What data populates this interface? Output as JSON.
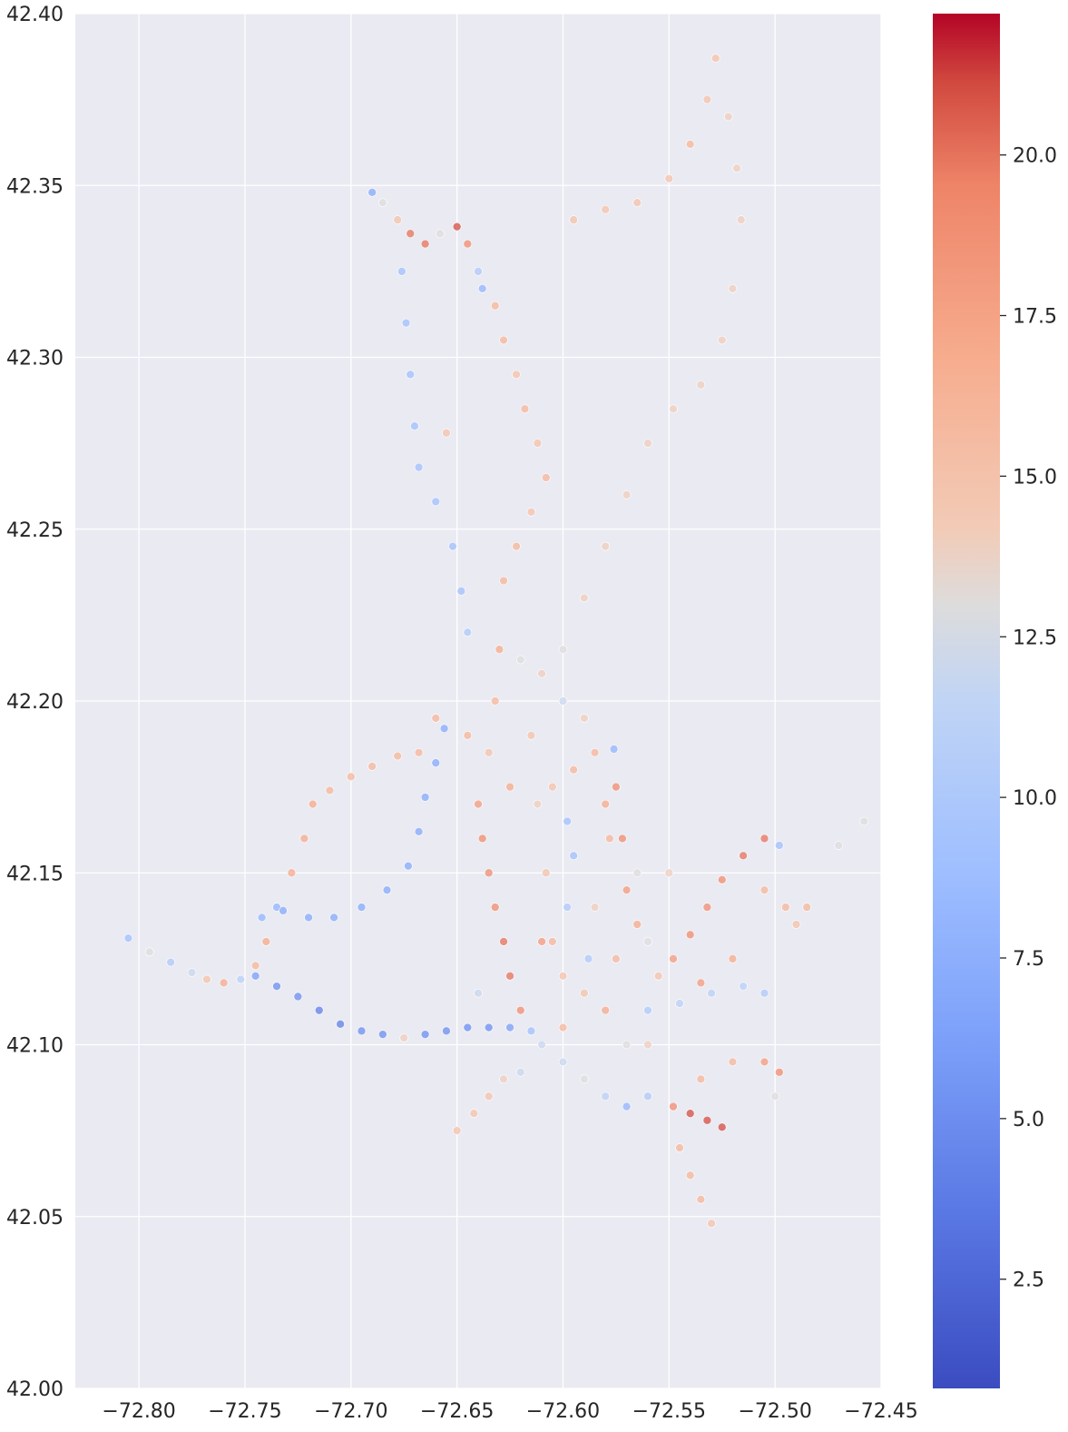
{
  "chart_data": {
    "type": "scatter",
    "title": "",
    "xlabel": "",
    "ylabel": "",
    "xlim": [
      -72.83,
      -72.45
    ],
    "ylim": [
      42.0,
      42.4
    ],
    "x_ticks": [
      {
        "value": -72.8,
        "label": "−72.80"
      },
      {
        "value": -72.75,
        "label": "−72.75"
      },
      {
        "value": -72.7,
        "label": "−72.70"
      },
      {
        "value": -72.65,
        "label": "−72.65"
      },
      {
        "value": -72.6,
        "label": "−72.60"
      },
      {
        "value": -72.55,
        "label": "−72.55"
      },
      {
        "value": -72.5,
        "label": "−72.50"
      },
      {
        "value": -72.45,
        "label": "−72.45"
      }
    ],
    "y_ticks": [
      {
        "value": 42.0,
        "label": "42.00"
      },
      {
        "value": 42.05,
        "label": "42.05"
      },
      {
        "value": 42.1,
        "label": "42.10"
      },
      {
        "value": 42.15,
        "label": "42.15"
      },
      {
        "value": 42.2,
        "label": "42.20"
      },
      {
        "value": 42.25,
        "label": "42.25"
      },
      {
        "value": 42.3,
        "label": "42.30"
      },
      {
        "value": 42.35,
        "label": "42.35"
      },
      {
        "value": 42.4,
        "label": "42.40"
      }
    ],
    "grid": true,
    "colormap": "coolwarm",
    "colorbar": {
      "range": [
        0.8,
        22.2
      ],
      "ticks": [
        {
          "value": 2.5,
          "label": "2.5"
        },
        {
          "value": 5.0,
          "label": "5.0"
        },
        {
          "value": 7.5,
          "label": "7.5"
        },
        {
          "value": 10.0,
          "label": "10.0"
        },
        {
          "value": 12.5,
          "label": "12.5"
        },
        {
          "value": 15.0,
          "label": "15.0"
        },
        {
          "value": 17.5,
          "label": "17.5"
        },
        {
          "value": 20.0,
          "label": "20.0"
        }
      ]
    },
    "colors": {
      "background": "#eaeaf2",
      "grid": "#ffffff",
      "low": "#3b4cc0",
      "mid": "#dddddd",
      "high": "#b40426"
    },
    "points": [
      {
        "x": -72.805,
        "y": 42.131,
        "c": 9
      },
      {
        "x": -72.795,
        "y": 42.127,
        "c": 13
      },
      {
        "x": -72.785,
        "y": 42.124,
        "c": 10
      },
      {
        "x": -72.775,
        "y": 42.121,
        "c": 12
      },
      {
        "x": -72.768,
        "y": 42.119,
        "c": 15
      },
      {
        "x": -72.76,
        "y": 42.118,
        "c": 17
      },
      {
        "x": -72.752,
        "y": 42.119,
        "c": 11
      },
      {
        "x": -72.745,
        "y": 42.123,
        "c": 16
      },
      {
        "x": -72.74,
        "y": 42.13,
        "c": 17
      },
      {
        "x": -72.735,
        "y": 42.14,
        "c": 8
      },
      {
        "x": -72.728,
        "y": 42.15,
        "c": 17
      },
      {
        "x": -72.722,
        "y": 42.16,
        "c": 17
      },
      {
        "x": -72.718,
        "y": 42.17,
        "c": 17
      },
      {
        "x": -72.71,
        "y": 42.174,
        "c": 16
      },
      {
        "x": -72.7,
        "y": 42.178,
        "c": 16
      },
      {
        "x": -72.69,
        "y": 42.181,
        "c": 16
      },
      {
        "x": -72.678,
        "y": 42.184,
        "c": 16
      },
      {
        "x": -72.668,
        "y": 42.185,
        "c": 16
      },
      {
        "x": -72.742,
        "y": 42.137,
        "c": 8
      },
      {
        "x": -72.732,
        "y": 42.139,
        "c": 7
      },
      {
        "x": -72.72,
        "y": 42.137,
        "c": 7
      },
      {
        "x": -72.708,
        "y": 42.137,
        "c": 7
      },
      {
        "x": -72.695,
        "y": 42.14,
        "c": 7
      },
      {
        "x": -72.683,
        "y": 42.145,
        "c": 7
      },
      {
        "x": -72.673,
        "y": 42.152,
        "c": 7
      },
      {
        "x": -72.668,
        "y": 42.162,
        "c": 7
      },
      {
        "x": -72.665,
        "y": 42.172,
        "c": 7
      },
      {
        "x": -72.66,
        "y": 42.182,
        "c": 7
      },
      {
        "x": -72.656,
        "y": 42.192,
        "c": 7
      },
      {
        "x": -72.745,
        "y": 42.12,
        "c": 6
      },
      {
        "x": -72.735,
        "y": 42.117,
        "c": 5
      },
      {
        "x": -72.725,
        "y": 42.114,
        "c": 5
      },
      {
        "x": -72.715,
        "y": 42.11,
        "c": 4
      },
      {
        "x": -72.705,
        "y": 42.106,
        "c": 4
      },
      {
        "x": -72.695,
        "y": 42.104,
        "c": 5
      },
      {
        "x": -72.685,
        "y": 42.103,
        "c": 5
      },
      {
        "x": -72.675,
        "y": 42.102,
        "c": 14
      },
      {
        "x": -72.665,
        "y": 42.103,
        "c": 5
      },
      {
        "x": -72.655,
        "y": 42.104,
        "c": 5
      },
      {
        "x": -72.645,
        "y": 42.105,
        "c": 5
      },
      {
        "x": -72.635,
        "y": 42.105,
        "c": 5
      },
      {
        "x": -72.625,
        "y": 42.105,
        "c": 6
      },
      {
        "x": -72.615,
        "y": 42.104,
        "c": 9
      },
      {
        "x": -72.69,
        "y": 42.348,
        "c": 7
      },
      {
        "x": -72.685,
        "y": 42.345,
        "c": 13
      },
      {
        "x": -72.678,
        "y": 42.34,
        "c": 15
      },
      {
        "x": -72.672,
        "y": 42.336,
        "c": 20
      },
      {
        "x": -72.665,
        "y": 42.333,
        "c": 20
      },
      {
        "x": -72.658,
        "y": 42.336,
        "c": 13
      },
      {
        "x": -72.65,
        "y": 42.338,
        "c": 21
      },
      {
        "x": -72.645,
        "y": 42.333,
        "c": 19
      },
      {
        "x": -72.64,
        "y": 42.325,
        "c": 10
      },
      {
        "x": -72.638,
        "y": 42.32,
        "c": 8
      },
      {
        "x": -72.632,
        "y": 42.315,
        "c": 16
      },
      {
        "x": -72.628,
        "y": 42.305,
        "c": 16
      },
      {
        "x": -72.622,
        "y": 42.295,
        "c": 15
      },
      {
        "x": -72.618,
        "y": 42.285,
        "c": 16
      },
      {
        "x": -72.612,
        "y": 42.275,
        "c": 15
      },
      {
        "x": -72.608,
        "y": 42.265,
        "c": 16
      },
      {
        "x": -72.615,
        "y": 42.255,
        "c": 15
      },
      {
        "x": -72.622,
        "y": 42.245,
        "c": 16
      },
      {
        "x": -72.628,
        "y": 42.235,
        "c": 16
      },
      {
        "x": -72.676,
        "y": 42.325,
        "c": 9
      },
      {
        "x": -72.674,
        "y": 42.31,
        "c": 9
      },
      {
        "x": -72.672,
        "y": 42.295,
        "c": 9
      },
      {
        "x": -72.67,
        "y": 42.28,
        "c": 9
      },
      {
        "x": -72.668,
        "y": 42.268,
        "c": 9
      },
      {
        "x": -72.66,
        "y": 42.258,
        "c": 9
      },
      {
        "x": -72.652,
        "y": 42.245,
        "c": 9
      },
      {
        "x": -72.648,
        "y": 42.232,
        "c": 9
      },
      {
        "x": -72.645,
        "y": 42.22,
        "c": 10
      },
      {
        "x": -72.655,
        "y": 42.278,
        "c": 15
      },
      {
        "x": -72.595,
        "y": 42.34,
        "c": 15
      },
      {
        "x": -72.58,
        "y": 42.343,
        "c": 15
      },
      {
        "x": -72.565,
        "y": 42.345,
        "c": 15
      },
      {
        "x": -72.55,
        "y": 42.352,
        "c": 15
      },
      {
        "x": -72.54,
        "y": 42.362,
        "c": 16
      },
      {
        "x": -72.532,
        "y": 42.375,
        "c": 15
      },
      {
        "x": -72.528,
        "y": 42.387,
        "c": 15
      },
      {
        "x": -72.522,
        "y": 42.37,
        "c": 14
      },
      {
        "x": -72.518,
        "y": 42.355,
        "c": 14
      },
      {
        "x": -72.516,
        "y": 42.34,
        "c": 14
      },
      {
        "x": -72.52,
        "y": 42.32,
        "c": 14
      },
      {
        "x": -72.525,
        "y": 42.305,
        "c": 14
      },
      {
        "x": -72.535,
        "y": 42.292,
        "c": 14
      },
      {
        "x": -72.548,
        "y": 42.285,
        "c": 14
      },
      {
        "x": -72.56,
        "y": 42.275,
        "c": 14
      },
      {
        "x": -72.57,
        "y": 42.26,
        "c": 14
      },
      {
        "x": -72.58,
        "y": 42.245,
        "c": 14
      },
      {
        "x": -72.59,
        "y": 42.23,
        "c": 14
      },
      {
        "x": -72.6,
        "y": 42.215,
        "c": 13
      },
      {
        "x": -72.63,
        "y": 42.215,
        "c": 17
      },
      {
        "x": -72.632,
        "y": 42.2,
        "c": 16
      },
      {
        "x": -72.635,
        "y": 42.185,
        "c": 15
      },
      {
        "x": -72.64,
        "y": 42.17,
        "c": 18
      },
      {
        "x": -72.638,
        "y": 42.16,
        "c": 19
      },
      {
        "x": -72.635,
        "y": 42.15,
        "c": 19
      },
      {
        "x": -72.632,
        "y": 42.14,
        "c": 19
      },
      {
        "x": -72.628,
        "y": 42.13,
        "c": 20
      },
      {
        "x": -72.625,
        "y": 42.12,
        "c": 20
      },
      {
        "x": -72.62,
        "y": 42.11,
        "c": 19
      },
      {
        "x": -72.62,
        "y": 42.212,
        "c": 13
      },
      {
        "x": -72.61,
        "y": 42.208,
        "c": 14
      },
      {
        "x": -72.6,
        "y": 42.2,
        "c": 12
      },
      {
        "x": -72.615,
        "y": 42.19,
        "c": 15
      },
      {
        "x": -72.612,
        "y": 42.17,
        "c": 14
      },
      {
        "x": -72.608,
        "y": 42.15,
        "c": 15
      },
      {
        "x": -72.605,
        "y": 42.13,
        "c": 16
      },
      {
        "x": -72.6,
        "y": 42.12,
        "c": 15
      },
      {
        "x": -72.598,
        "y": 42.165,
        "c": 9
      },
      {
        "x": -72.595,
        "y": 42.155,
        "c": 9
      },
      {
        "x": -72.598,
        "y": 42.14,
        "c": 10
      },
      {
        "x": -72.585,
        "y": 42.185,
        "c": 16
      },
      {
        "x": -72.58,
        "y": 42.17,
        "c": 17
      },
      {
        "x": -72.578,
        "y": 42.16,
        "c": 16
      },
      {
        "x": -72.575,
        "y": 42.175,
        "c": 19
      },
      {
        "x": -72.572,
        "y": 42.16,
        "c": 19
      },
      {
        "x": -72.57,
        "y": 42.145,
        "c": 18
      },
      {
        "x": -72.565,
        "y": 42.135,
        "c": 17
      },
      {
        "x": -72.576,
        "y": 42.186,
        "c": 8
      },
      {
        "x": -72.56,
        "y": 42.13,
        "c": 13
      },
      {
        "x": -72.555,
        "y": 42.12,
        "c": 15
      },
      {
        "x": -72.548,
        "y": 42.125,
        "c": 18
      },
      {
        "x": -72.54,
        "y": 42.132,
        "c": 19
      },
      {
        "x": -72.532,
        "y": 42.14,
        "c": 19
      },
      {
        "x": -72.525,
        "y": 42.148,
        "c": 19
      },
      {
        "x": -72.515,
        "y": 42.155,
        "c": 20
      },
      {
        "x": -72.505,
        "y": 42.16,
        "c": 20
      },
      {
        "x": -72.498,
        "y": 42.158,
        "c": 9
      },
      {
        "x": -72.505,
        "y": 42.145,
        "c": 16
      },
      {
        "x": -72.495,
        "y": 42.14,
        "c": 16
      },
      {
        "x": -72.485,
        "y": 42.14,
        "c": 16
      },
      {
        "x": -72.49,
        "y": 42.135,
        "c": 15
      },
      {
        "x": -72.47,
        "y": 42.158,
        "c": 13
      },
      {
        "x": -72.458,
        "y": 42.165,
        "c": 13
      },
      {
        "x": -72.56,
        "y": 42.11,
        "c": 10
      },
      {
        "x": -72.545,
        "y": 42.112,
        "c": 11
      },
      {
        "x": -72.53,
        "y": 42.115,
        "c": 11
      },
      {
        "x": -72.515,
        "y": 42.117,
        "c": 11
      },
      {
        "x": -72.505,
        "y": 42.115,
        "c": 10
      },
      {
        "x": -72.52,
        "y": 42.125,
        "c": 17
      },
      {
        "x": -72.535,
        "y": 42.118,
        "c": 18
      },
      {
        "x": -72.61,
        "y": 42.1,
        "c": 12
      },
      {
        "x": -72.6,
        "y": 42.095,
        "c": 12
      },
      {
        "x": -72.59,
        "y": 42.09,
        "c": 13
      },
      {
        "x": -72.58,
        "y": 42.085,
        "c": 11
      },
      {
        "x": -72.57,
        "y": 42.082,
        "c": 8
      },
      {
        "x": -72.56,
        "y": 42.085,
        "c": 10
      },
      {
        "x": -72.548,
        "y": 42.082,
        "c": 19
      },
      {
        "x": -72.54,
        "y": 42.08,
        "c": 21
      },
      {
        "x": -72.532,
        "y": 42.078,
        "c": 21
      },
      {
        "x": -72.525,
        "y": 42.076,
        "c": 21
      },
      {
        "x": -72.535,
        "y": 42.09,
        "c": 16
      },
      {
        "x": -72.52,
        "y": 42.095,
        "c": 16
      },
      {
        "x": -72.505,
        "y": 42.095,
        "c": 18
      },
      {
        "x": -72.498,
        "y": 42.092,
        "c": 19
      },
      {
        "x": -72.5,
        "y": 42.085,
        "c": 13
      },
      {
        "x": -72.65,
        "y": 42.075,
        "c": 15
      },
      {
        "x": -72.642,
        "y": 42.08,
        "c": 15
      },
      {
        "x": -72.635,
        "y": 42.085,
        "c": 15
      },
      {
        "x": -72.628,
        "y": 42.09,
        "c": 14
      },
      {
        "x": -72.62,
        "y": 42.092,
        "c": 12
      },
      {
        "x": -72.545,
        "y": 42.07,
        "c": 16
      },
      {
        "x": -72.54,
        "y": 42.062,
        "c": 16
      },
      {
        "x": -72.535,
        "y": 42.055,
        "c": 16
      },
      {
        "x": -72.53,
        "y": 42.048,
        "c": 15
      },
      {
        "x": -72.66,
        "y": 42.195,
        "c": 16
      },
      {
        "x": -72.645,
        "y": 42.19,
        "c": 16
      },
      {
        "x": -72.59,
        "y": 42.195,
        "c": 14
      },
      {
        "x": -72.585,
        "y": 42.14,
        "c": 14
      },
      {
        "x": -72.59,
        "y": 42.115,
        "c": 15
      },
      {
        "x": -72.58,
        "y": 42.11,
        "c": 17
      },
      {
        "x": -72.57,
        "y": 42.1,
        "c": 13
      },
      {
        "x": -72.56,
        "y": 42.1,
        "c": 14
      },
      {
        "x": -72.61,
        "y": 42.13,
        "c": 18
      },
      {
        "x": -72.6,
        "y": 42.105,
        "c": 16
      },
      {
        "x": -72.588,
        "y": 42.125,
        "c": 10
      },
      {
        "x": -72.575,
        "y": 42.125,
        "c": 16
      },
      {
        "x": -72.595,
        "y": 42.18,
        "c": 16
      },
      {
        "x": -72.605,
        "y": 42.175,
        "c": 15
      },
      {
        "x": -72.625,
        "y": 42.175,
        "c": 17
      },
      {
        "x": -72.64,
        "y": 42.115,
        "c": 12
      },
      {
        "x": -72.565,
        "y": 42.15,
        "c": 13
      },
      {
        "x": -72.55,
        "y": 42.15,
        "c": 14
      }
    ]
  }
}
